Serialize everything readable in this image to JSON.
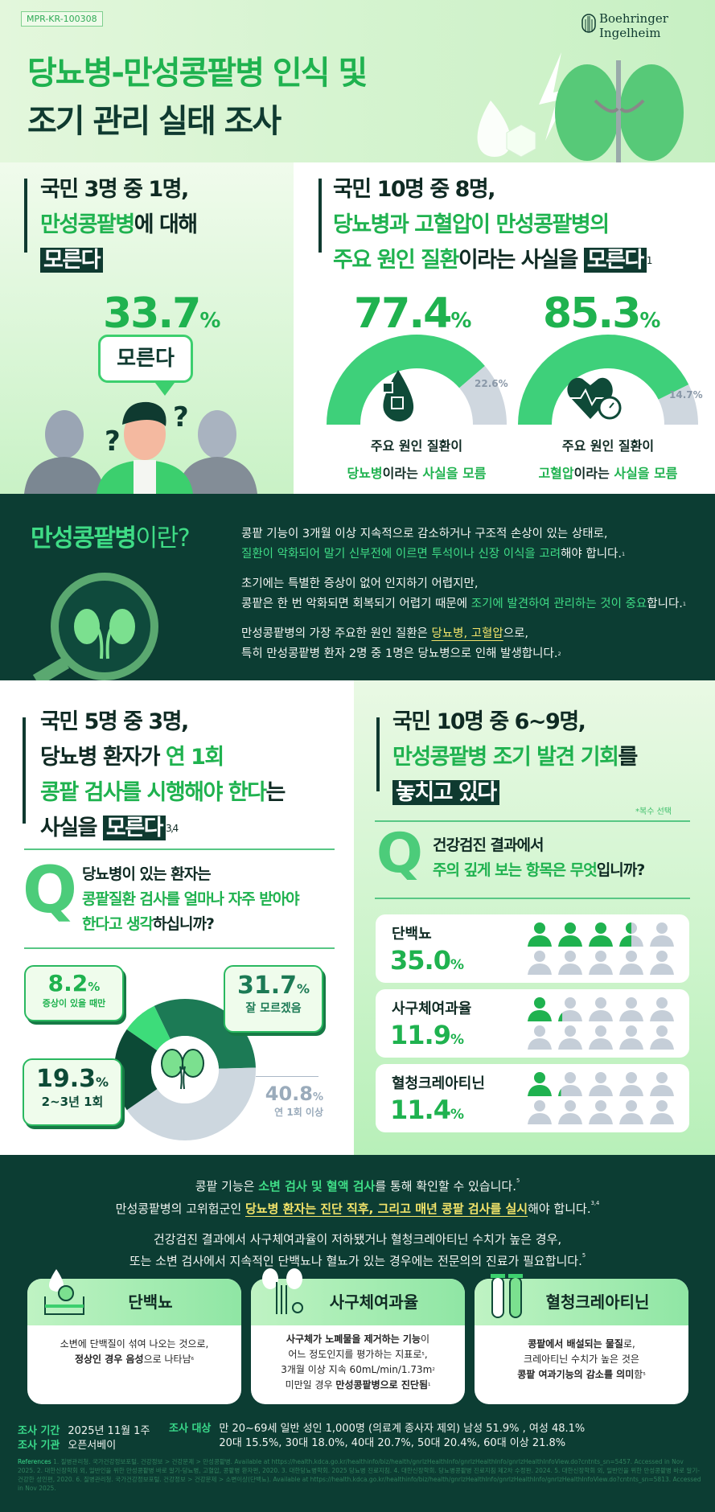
{
  "header": {
    "code": "MPR-KR-100308",
    "brand_line1": "Boehringer",
    "brand_line2": "Ingelheim",
    "title_line1": "당뇨병-만성콩팥병 인식 및",
    "title_line2": "조기 관리 실태 조사"
  },
  "awareness": {
    "left": {
      "line1": "국민 3명 중 1명,",
      "line2_green": "만성콩팥병",
      "line2_rest": "에 대해",
      "line3_box": "모른다",
      "percent": "33.7",
      "unit": "%",
      "bubble": "모른다"
    },
    "right": {
      "line1": "국민 10명 중 8명,",
      "line2_green": "당뇨병과 고혈압이 만성콩팥병의",
      "line3_green": "주요 원인 질환",
      "line3_rest": "이라는 사실을 ",
      "line3_box": "모른다",
      "line3_sup": "1",
      "gauges": [
        {
          "percent": "77.4",
          "unit": "%",
          "value": 77.4,
          "rest": "22.6",
          "label1": "주요 원인 질환이",
          "label2_green": "당뇨병",
          "label2_mid": "이라는 ",
          "label2_end": "사실을 모름",
          "icon": "blood-drop-sugar-icon"
        },
        {
          "percent": "85.3",
          "unit": "%",
          "value": 85.3,
          "rest": "14.7",
          "label1": "주요 원인 질환이",
          "label2_green": "고혈압",
          "label2_mid": "이라는 ",
          "label2_end": "사실을 모름",
          "icon": "heart-clock-icon"
        }
      ]
    }
  },
  "definition": {
    "title_green": "만성콩팥병",
    "title_rest": "이란?",
    "p1_line1": "콩팥 기능이 3개월 이상 지속적으로 감소하거나 구조적 손상이 있는 상태로,",
    "p1_line2_green": "질환이 악화되어 말기 신부전에 이르면 투석이나 신장 이식을 고려",
    "p1_line2_rest": "해야 합니다.",
    "p1_sup": "1",
    "p2_line1": "초기에는 특별한 증상이 없어 인지하기 어렵지만,",
    "p2_line2_a": "콩팥은 한 번 악화되면 회복되기 어렵기 때문에 ",
    "p2_line2_green": "조기에 발견하여 관리하는 것이 중요",
    "p2_line2_rest": "합니다.",
    "p2_sup": "1",
    "p3_line1_a": "만성콩팥병의 가장 주요한 원인 질환은 ",
    "p3_line1_yellow": "당뇨병, 고혈압",
    "p3_line1_rest": "으로,",
    "p3_line2": "특히 만성콩팥병 환자 2명 중 1명은 당뇨병으로 인해 발생합니다.",
    "p3_sup": "2"
  },
  "checkup": {
    "left": {
      "line1": "국민 5명 중 3명,",
      "line2_a": "당뇨병 환자가 ",
      "line2_green": "연 1회",
      "line3_green": "콩팥 검사를 시행해야 한다",
      "line3_rest": "는",
      "line4_a": "사실을 ",
      "line4_box": "모른다",
      "line4_sup": "3,4",
      "q_mark": "Q",
      "q_line1": "당뇨병이 있는 환자는",
      "q_line2_green": "콩팥질환 검사를 얼마나 자주 받아야",
      "q_line3_green": "한다고 생각",
      "q_line3_rest": "하십니까?"
    },
    "right": {
      "line1": "국민 10명 중 6~9명,",
      "line2_green": "만성콩팥병 조기 발견 기회",
      "line2_rest": "를",
      "line3_box": "놓치고 있다",
      "note": "*복수 선택",
      "q_mark": "Q",
      "q_line1": "건강검진 결과에서",
      "q_line2_green": "주의 깊게 보는 항목은 무엇",
      "q_line2_rest": "입니까?"
    }
  },
  "chart_data": [
    {
      "type": "pie",
      "variant": "donut",
      "categories": [
        "잘 모르겠음",
        "연 1회 이상",
        "2~3년 1회",
        "증상이 있을 때만"
      ],
      "values": [
        31.7,
        40.8,
        19.3,
        8.2
      ],
      "labels": [
        "31.7",
        "40.8",
        "19.3",
        "8.2"
      ],
      "unit": "%",
      "colors": [
        "#1c7a55",
        "#cdd7df",
        "#0c4a36",
        "#3ddc7a"
      ]
    },
    {
      "type": "bar",
      "variant": "pictogram",
      "categories": [
        "단백뇨",
        "사구체여과율",
        "혈청크레아티닌"
      ],
      "values": [
        35.0,
        11.9,
        11.4
      ],
      "labels": [
        "35.0",
        "11.9",
        "11.4"
      ],
      "unit": "%",
      "icons_per_row": 10,
      "colors": {
        "filled": "#1fb24f",
        "empty": "#c5ced8"
      }
    }
  ],
  "guidance": {
    "l1_a": "콩팥 기능은 ",
    "l1_green": "소변 검사 및 혈액 검사",
    "l1_rest": "를 통해 확인할 수 있습니다.",
    "l1_sup": "5",
    "l2_a": "만성콩팥병의 고위험군인 ",
    "l2_yellow": "당뇨병 환자는 진단 직후, 그리고 매년 콩팥 검사를 실시",
    "l2_rest": "해야 합니다.",
    "l2_sup": "3,4",
    "l3": "건강검진 결과에서 사구체여과율이 저하됐거나 혈청크레아티닌 수치가 높은 경우,",
    "l4": "또는 소변 검사에서 지속적인 단백뇨나 혈뇨가 있는 경우에는 전문의의 진료가 필요합니다.",
    "l4_sup": "5",
    "cards": [
      {
        "title": "단백뇨",
        "icon": "urine-drop-icon",
        "l1": "소변에 단백질이 섞여 나오는 것으로,",
        "l2_bold": "정상인 경우 음성",
        "l2_rest": "으로 나타남",
        "l2_sup": "6"
      },
      {
        "title": "사구체여과율",
        "icon": "kidney-filter-icon",
        "l1_bold": "사구체가 노폐물을 제거하는 기능",
        "l1_rest": "이",
        "l2": "어느 정도인지를 평가하는 지표로",
        "l2_sup": "5",
        "l2_end": ",",
        "l3": "3개월 이상 지속 60mL/min/1.73m",
        "l3_sup": "2",
        "l4_a": "미만일 경우 ",
        "l4_bold": "만성콩팥병으로 진단됨",
        "l4_sup": "1"
      },
      {
        "title": "혈청크레아티닌",
        "icon": "test-tube-icon",
        "l1_bold": "콩팥에서 배설되는 물질",
        "l1_rest": "로,",
        "l2": "크레아티닌 수치가 높은 것은",
        "l3_bold": "콩팥 여과기능의 감소를 의미",
        "l3_rest": "함",
        "l3_sup": "5"
      }
    ]
  },
  "footer": {
    "period_label": "조사 기간",
    "period": "2025년 11월 1주",
    "org_label": "조사 기관",
    "org": "오픈서베이",
    "target_label": "조사 대상",
    "target_line1": "만 20~69세 일반 성인 1,000명 (의료계 종사자 제외)  남성 51.9% , 여성 48.1%",
    "target_line2": "20대 15.5%, 30대 18.0%, 40대 20.7%, 50대 20.4%, 60대 이상 21.8%",
    "references_label": "References",
    "references": "1. 질병관리청. 국가건강정보포털. 건강정보 > 건강문제 > 만성콩팥병. Available at https://health.kdca.go.kr/healthinfo/biz/health/gnrlzHealthInfo/gnrlzHealthInfo/gnrlzHealthInfoView.do?cntnts_sn=5457. Accessed in Nov 2025. 2. 대한신장학회 외, 일반인을 위한 만성콩팥병 바로 알기-당뇨병, 고혈압, 콩팥병 환자편, 2020. 3. 대한당뇨병학회. 2025 당뇨병 진료지침. 4. 대한신장학회. 당뇨병콩팥병 진료지침 제2차 수정판. 2024. 5. 대한신장학회 외, 일반인을 위한 만성콩팥병 바로 알기-건강한 성인편, 2020. 6. 질병관리청. 국가건강정보포털. 건강정보 > 건강문제 > 소변이상(단백뇨). Available at https://health.kdca.go.kr/healthinfo/biz/health/gnrlzHealthInfo/gnrlzHealthInfo/gnrlzHealthInfoView.do?cntnts_sn=5813. Accessed in Nov 2025."
  }
}
